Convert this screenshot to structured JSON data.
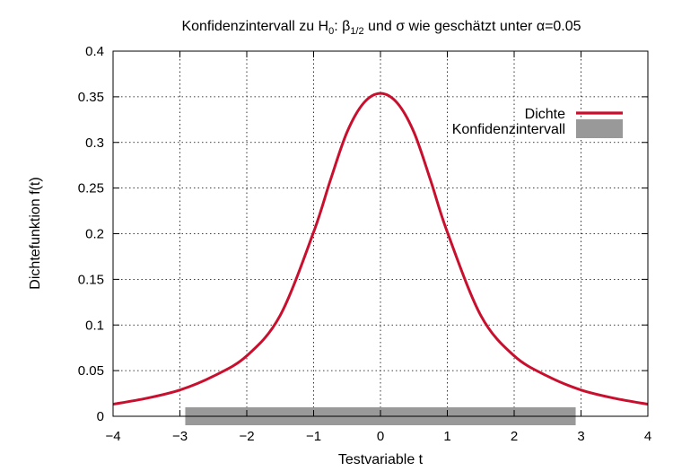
{
  "chart_data": {
    "type": "line",
    "title": {
      "part1": "Konfidenzintervall zu H",
      "sub_h": "0",
      "part2": ": ",
      "beta": "β",
      "sub_beta": "1/2",
      "part3": " und σ wie geschätzt unter  α=0.05"
    },
    "xlabel": "Testvariable t",
    "ylabel": "Dichtefunktion f(t)",
    "xlim": [
      -4,
      4
    ],
    "ylim": [
      0,
      0.4
    ],
    "xticks": [
      -4,
      -3,
      -2,
      -1,
      0,
      1,
      2,
      3,
      4
    ],
    "xtick_labels": [
      "−4",
      "−3",
      "−2",
      "−1",
      "0",
      "1",
      "2",
      "3",
      "4"
    ],
    "yticks": [
      0,
      0.05,
      0.1,
      0.15,
      0.2,
      0.25,
      0.3,
      0.35,
      0.4
    ],
    "ytick_labels": [
      "0",
      "0.05",
      "0.1",
      "0.15",
      "0.2",
      "0.25",
      "0.3",
      "0.35",
      "0.4"
    ],
    "grid": true,
    "legend_position": "top-right",
    "series": [
      {
        "name": "Dichte",
        "kind": "line",
        "color": "#c8102e",
        "x": [
          -4,
          -3.5,
          -3,
          -2.5,
          -2,
          -1.5,
          -1,
          -0.75,
          -0.5,
          -0.25,
          0,
          0.25,
          0.5,
          0.75,
          1,
          1.5,
          2,
          2.5,
          3,
          3.5,
          4
        ],
        "y": [
          0.0132,
          0.0197,
          0.0288,
          0.0439,
          0.0662,
          0.1105,
          0.2018,
          0.2584,
          0.3113,
          0.3433,
          0.3537,
          0.3433,
          0.3113,
          0.2584,
          0.2018,
          0.1105,
          0.0662,
          0.0439,
          0.0288,
          0.0197,
          0.0132
        ]
      },
      {
        "name": "Konfidenzintervall",
        "kind": "interval",
        "color": "#999999",
        "from": -2.92,
        "to": 2.92
      }
    ]
  }
}
